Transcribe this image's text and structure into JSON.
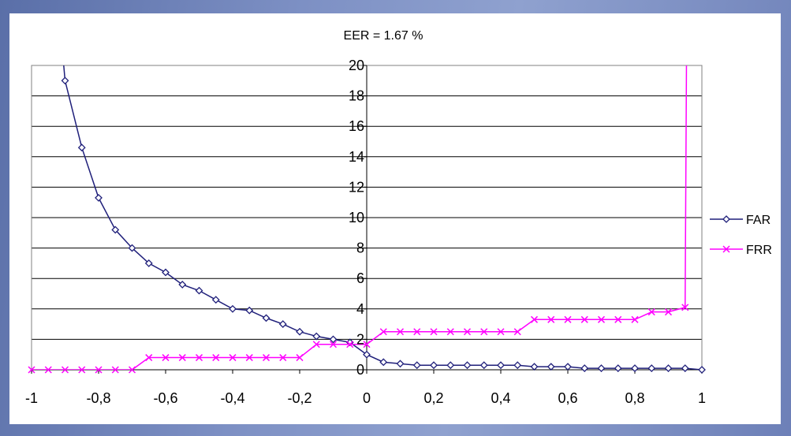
{
  "chart_data": {
    "type": "line",
    "title": "EER = 1.67 %",
    "xlim": [
      -1,
      1
    ],
    "ylim": [
      0,
      20
    ],
    "x_tick_labels": [
      "-1",
      "-0,8",
      "-0,6",
      "-0,4",
      "-0,2",
      "0",
      "0,2",
      "0,4",
      "0,6",
      "0,8",
      "1"
    ],
    "y_tick_labels": [
      "0",
      "2",
      "4",
      "6",
      "8",
      "10",
      "12",
      "14",
      "16",
      "18",
      "20"
    ],
    "grid": "horizontal",
    "legend_position": "right",
    "x": [
      -1,
      -0.95,
      -0.9,
      -0.85,
      -0.8,
      -0.75,
      -0.7,
      -0.65,
      -0.6,
      -0.55,
      -0.5,
      -0.45,
      -0.4,
      -0.35,
      -0.3,
      -0.25,
      -0.2,
      -0.15,
      -0.1,
      -0.05,
      0,
      0.05,
      0.1,
      0.15,
      0.2,
      0.25,
      0.3,
      0.35,
      0.4,
      0.45,
      0.5,
      0.55,
      0.6,
      0.65,
      0.7,
      0.75,
      0.8,
      0.85,
      0.9,
      0.95,
      1
    ],
    "series": [
      {
        "name": "FAR",
        "color": "#1f1f7a",
        "marker": "diamond",
        "values": [
          null,
          null,
          19.0,
          14.6,
          11.3,
          9.2,
          8.0,
          7.0,
          6.4,
          5.6,
          5.2,
          4.6,
          4.0,
          3.9,
          3.4,
          3.0,
          2.5,
          2.2,
          2.0,
          1.8,
          1.0,
          0.5,
          0.4,
          0.3,
          0.3,
          0.3,
          0.3,
          0.3,
          0.3,
          0.3,
          0.2,
          0.2,
          0.2,
          0.1,
          0.1,
          0.1,
          0.1,
          0.1,
          0.1,
          0.1,
          0.0
        ]
      },
      {
        "name": "FRR",
        "color": "#ff00ff",
        "marker": "x",
        "values": [
          0.0,
          0.0,
          0.0,
          0.0,
          0.0,
          0.0,
          0.0,
          0.8,
          0.8,
          0.8,
          0.8,
          0.8,
          0.8,
          0.8,
          0.8,
          0.8,
          0.8,
          1.67,
          1.67,
          1.67,
          1.67,
          2.5,
          2.5,
          2.5,
          2.5,
          2.5,
          2.5,
          2.5,
          2.5,
          2.5,
          3.3,
          3.3,
          3.3,
          3.3,
          3.3,
          3.3,
          3.3,
          3.8,
          3.8,
          4.1,
          null
        ]
      }
    ]
  }
}
